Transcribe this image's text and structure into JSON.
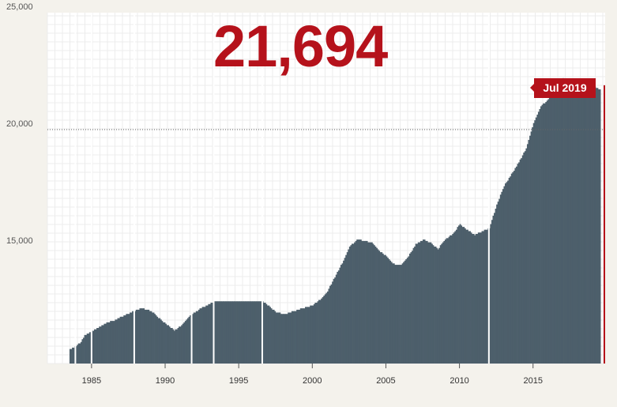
{
  "headline_value": "21,694",
  "callout_label": "Jul 2019",
  "chart_data": {
    "type": "bar",
    "title": "",
    "xlabel": "",
    "ylabel": "",
    "ylim": [
      10000,
      25000
    ],
    "xlim": [
      1982,
      2019.9
    ],
    "grid": true,
    "reference_line": 20000,
    "y_tick_labels": [
      {
        "value": 25000,
        "label": "25,000"
      },
      {
        "value": 20000,
        "label": "20,000"
      },
      {
        "value": 15000,
        "label": "15,000"
      }
    ],
    "x_tick_labels": [
      {
        "value": 1985,
        "label": "1985"
      },
      {
        "value": 1990,
        "label": "1990"
      },
      {
        "value": 1995,
        "label": "1995"
      },
      {
        "value": 2000,
        "label": "2000"
      },
      {
        "value": 2005,
        "label": "2005"
      },
      {
        "value": 2010,
        "label": "2010"
      },
      {
        "value": 2015,
        "label": "2015"
      }
    ],
    "gaps": [
      1983.9,
      1985.0,
      1987.9,
      1991.8,
      1993.3,
      1996.6,
      2012.0
    ],
    "series": [
      {
        "values": [
          [
            1983.5,
            10600
          ],
          [
            1983.8,
            10700
          ],
          [
            1984.0,
            10800
          ],
          [
            1984.2,
            10900
          ],
          [
            1984.5,
            11200
          ],
          [
            1984.8,
            11300
          ],
          [
            1985.0,
            11400
          ],
          [
            1985.3,
            11500
          ],
          [
            1985.6,
            11600
          ],
          [
            1986.0,
            11750
          ],
          [
            1986.5,
            11850
          ],
          [
            1987.0,
            12000
          ],
          [
            1987.5,
            12150
          ],
          [
            1987.9,
            12250
          ],
          [
            1988.3,
            12350
          ],
          [
            1988.8,
            12300
          ],
          [
            1989.2,
            12150
          ],
          [
            1989.6,
            11900
          ],
          [
            1990.0,
            11700
          ],
          [
            1990.3,
            11550
          ],
          [
            1990.6,
            11400
          ],
          [
            1991.0,
            11600
          ],
          [
            1991.5,
            11950
          ],
          [
            1992.0,
            12200
          ],
          [
            1992.5,
            12400
          ],
          [
            1993.0,
            12550
          ],
          [
            1993.3,
            12650
          ],
          [
            1994.0,
            12650
          ],
          [
            1995.0,
            12650
          ],
          [
            1996.0,
            12650
          ],
          [
            1996.6,
            12650
          ],
          [
            1997.0,
            12450
          ],
          [
            1997.5,
            12200
          ],
          [
            1998.0,
            12100
          ],
          [
            1998.5,
            12200
          ],
          [
            1999.0,
            12300
          ],
          [
            1999.5,
            12400
          ],
          [
            2000.0,
            12500
          ],
          [
            2000.5,
            12750
          ],
          [
            2001.0,
            13100
          ],
          [
            2001.5,
            13700
          ],
          [
            2002.0,
            14300
          ],
          [
            2002.5,
            15000
          ],
          [
            2003.0,
            15300
          ],
          [
            2003.5,
            15250
          ],
          [
            2004.0,
            15150
          ],
          [
            2004.5,
            14800
          ],
          [
            2005.0,
            14600
          ],
          [
            2005.5,
            14250
          ],
          [
            2006.0,
            14200
          ],
          [
            2006.5,
            14600
          ],
          [
            2007.0,
            15100
          ],
          [
            2007.5,
            15300
          ],
          [
            2008.0,
            15150
          ],
          [
            2008.5,
            14900
          ],
          [
            2009.0,
            15300
          ],
          [
            2009.5,
            15550
          ],
          [
            2010.0,
            15950
          ],
          [
            2010.5,
            15700
          ],
          [
            2011.0,
            15500
          ],
          [
            2011.5,
            15650
          ],
          [
            2012.0,
            15800
          ],
          [
            2012.5,
            16800
          ],
          [
            2013.0,
            17600
          ],
          [
            2013.5,
            18100
          ],
          [
            2014.0,
            18600
          ],
          [
            2014.5,
            19200
          ],
          [
            2015.0,
            20300
          ],
          [
            2015.5,
            21000
          ],
          [
            2016.0,
            21300
          ],
          [
            2016.5,
            21900
          ],
          [
            2017.0,
            22200
          ],
          [
            2017.5,
            21800
          ],
          [
            2018.0,
            22050
          ],
          [
            2018.5,
            21500
          ],
          [
            2019.0,
            21900
          ],
          [
            2019.5,
            21694
          ]
        ]
      }
    ]
  }
}
